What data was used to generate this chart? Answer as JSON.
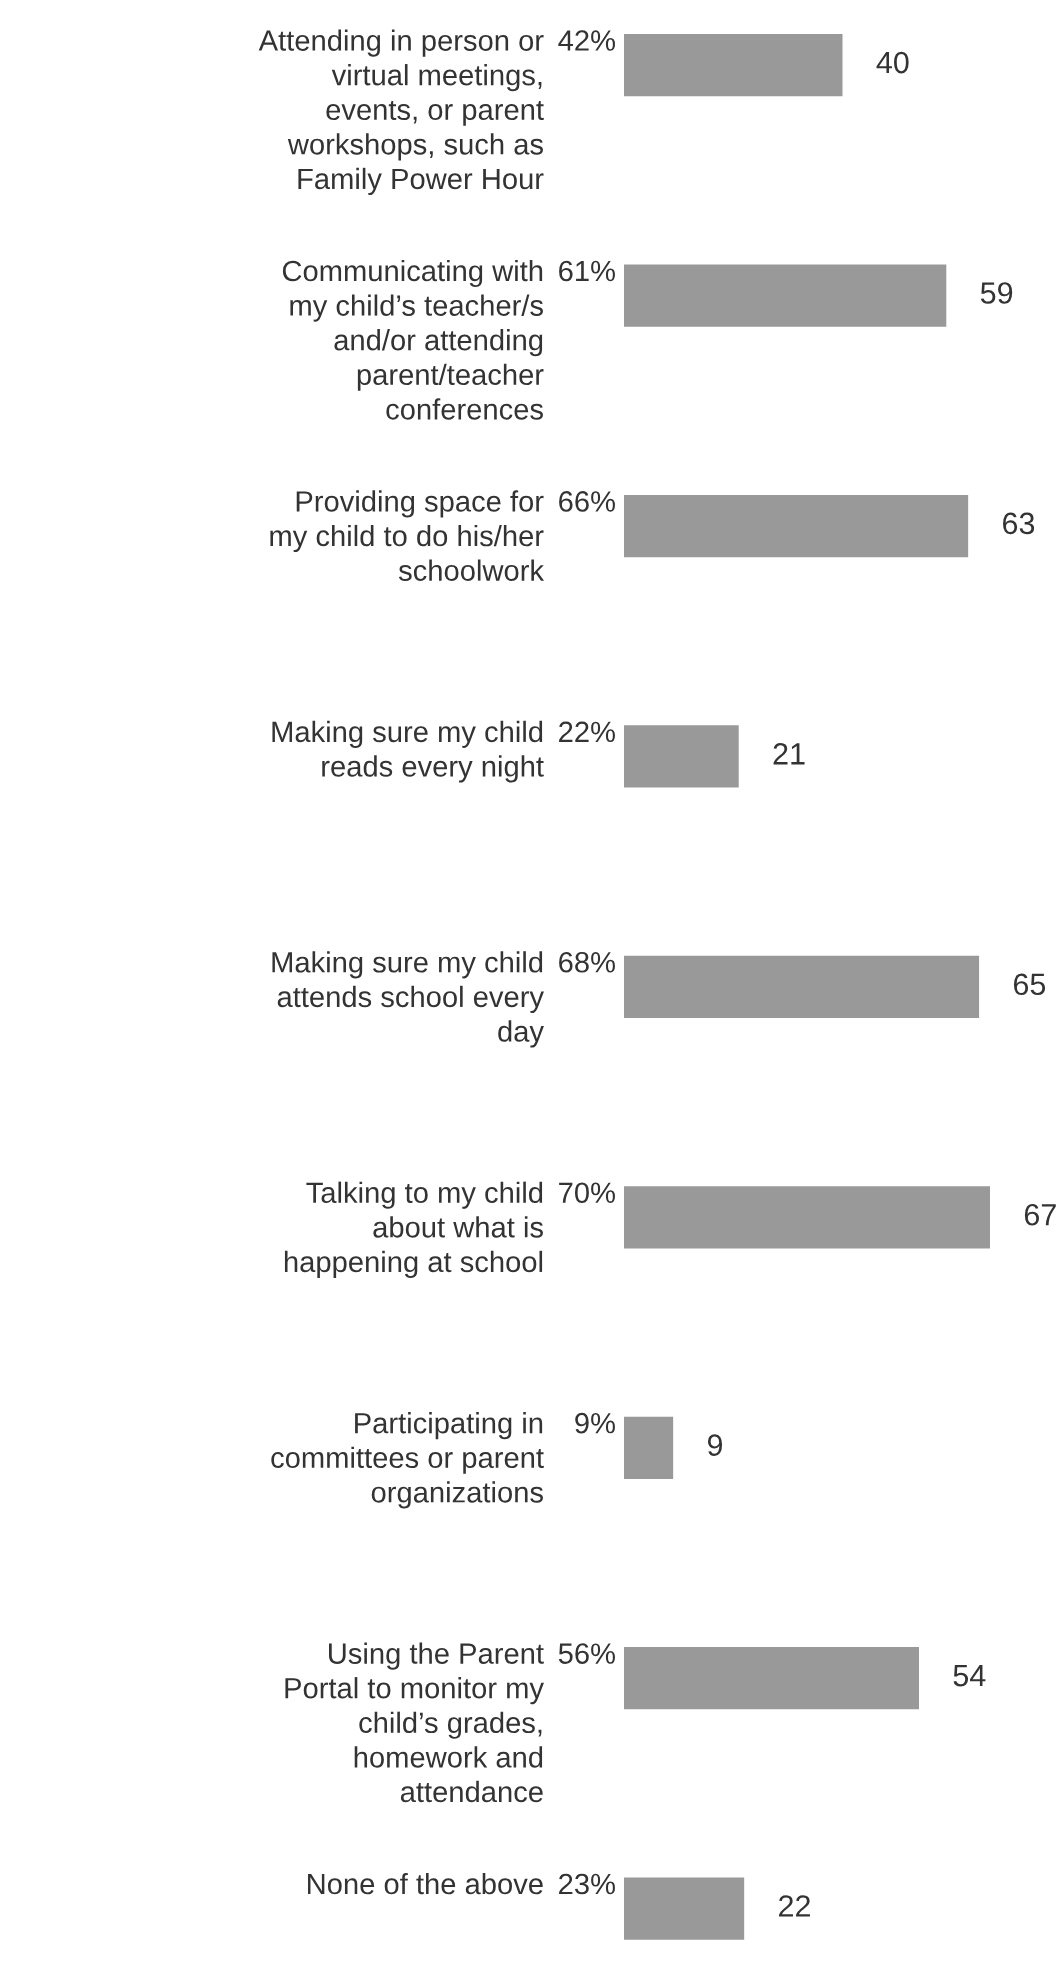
{
  "chart_data": {
    "type": "bar",
    "orientation": "horizontal",
    "data_labels": true,
    "tick_labels": "y",
    "categories": [
      "Attending in person or\nvirtual meetings,\nevents, or parent\nworkshops, such as\nFamily Power Hour",
      "Communicating with\nmy child’s teacher/s\nand/or attending\nparent/teacher\nconferences",
      "Providing space for\nmy child to do his/her\nschoolwork",
      "Making sure my child\nreads every night",
      "Making sure my child\nattends school every\nday",
      "Talking to my child\nabout what is\nhappening at school",
      "Participating in\ncommittees or parent\norganizations",
      "Using the Parent\nPortal to monitor my\nchild’s grades,\nhomework and\nattendance",
      "None of the above"
    ],
    "values": [
      40,
      59,
      63,
      21,
      65,
      67,
      9,
      54,
      22
    ],
    "color": "#999999",
    "annotations": [
      "42%",
      "61%",
      "66%",
      "22%",
      "68%",
      "70%",
      "9%",
      "56%",
      "23%"
    ]
  }
}
